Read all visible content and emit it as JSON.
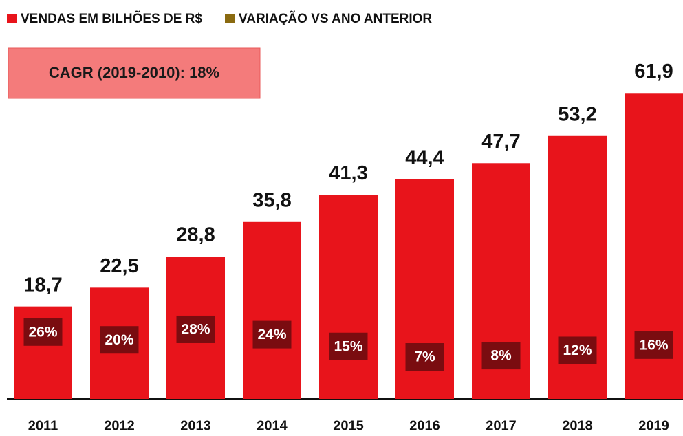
{
  "chart_data": {
    "type": "bar",
    "annotation": "CAGR (2019-2010): 18%",
    "categories": [
      "2011",
      "2012",
      "2013",
      "2014",
      "2015",
      "2016",
      "2017",
      "2018",
      "2019"
    ],
    "series": [
      {
        "name": "VENDAS EM BILHÕES DE R$",
        "color": "#e8141b",
        "values": [
          18.7,
          22.5,
          28.8,
          35.8,
          41.3,
          44.4,
          47.7,
          53.2,
          61.9
        ],
        "value_labels": [
          "18,7",
          "22,5",
          "28,8",
          "35,8",
          "41,3",
          "44,4",
          "47,7",
          "53,2",
          "61,9"
        ]
      },
      {
        "name": "VARIAÇÃO VS ANO ANTERIOR",
        "color": "#8a6a10",
        "box_color": "#7a0c10",
        "axis": "y2",
        "values": [
          26,
          20,
          28,
          24,
          15,
          7,
          8,
          12,
          16
        ],
        "value_labels": [
          "26%",
          "20%",
          "28%",
          "24%",
          "15%",
          "7%",
          "8%",
          "12%",
          "16%"
        ]
      }
    ],
    "ylim": [
      0,
      65
    ],
    "y2lim": [
      -25,
      220
    ]
  }
}
